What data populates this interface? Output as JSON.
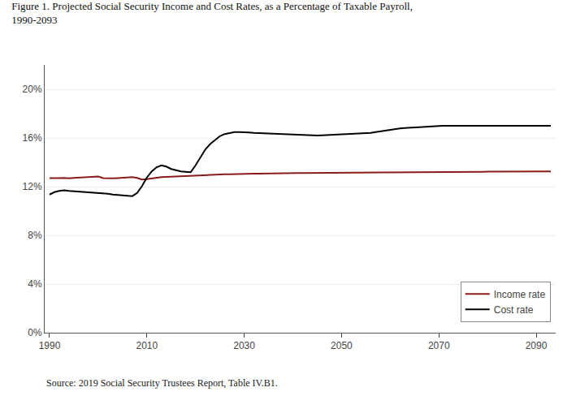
{
  "chart_data": {
    "type": "line",
    "title": "Figure 1. Projected Social Security Income and Cost Rates, as a Percentage of Taxable Payroll, 1990-2093",
    "annotations": [
      "Source: 2019 Social Security Trustees Report, Table IV.B1."
    ],
    "x": [
      1990,
      1991,
      1992,
      1993,
      1994,
      1995,
      1996,
      1997,
      1998,
      1999,
      2000,
      2001,
      2002,
      2003,
      2004,
      2005,
      2006,
      2007,
      2008,
      2009,
      2010,
      2011,
      2012,
      2013,
      2014,
      2015,
      2016,
      2017,
      2018,
      2019,
      2020,
      2021,
      2022,
      2023,
      2024,
      2025,
      2026,
      2027,
      2028,
      2029,
      2030,
      2031,
      2032,
      2033,
      2034,
      2035,
      2036,
      2037,
      2038,
      2039,
      2040,
      2041,
      2042,
      2043,
      2044,
      2045,
      2046,
      2047,
      2048,
      2049,
      2050,
      2051,
      2052,
      2053,
      2054,
      2055,
      2056,
      2057,
      2058,
      2059,
      2060,
      2061,
      2062,
      2063,
      2064,
      2065,
      2066,
      2067,
      2068,
      2069,
      2070,
      2071,
      2072,
      2073,
      2074,
      2075,
      2076,
      2077,
      2078,
      2079,
      2080,
      2081,
      2082,
      2083,
      2084,
      2085,
      2086,
      2087,
      2088,
      2089,
      2090,
      2091,
      2092,
      2093
    ],
    "series": [
      {
        "name": "Income rate",
        "color": "#8B1A1A",
        "values": [
          0.127,
          0.1268,
          0.127,
          0.1272,
          0.1268,
          0.1272,
          0.1275,
          0.1278,
          0.128,
          0.1282,
          0.1283,
          0.127,
          0.1268,
          0.1268,
          0.127,
          0.1272,
          0.1275,
          0.1278,
          0.1272,
          0.1258,
          0.1262,
          0.1268,
          0.1272,
          0.1278,
          0.128,
          0.1282,
          0.1285,
          0.1288,
          0.129,
          0.1292,
          0.1295,
          0.1295,
          0.1298,
          0.1298,
          0.13,
          0.13,
          0.1302,
          0.1302,
          0.1304,
          0.1304,
          0.1306,
          0.1306,
          0.1307,
          0.1307,
          0.1308,
          0.1308,
          0.1309,
          0.1309,
          0.131,
          0.131,
          0.1311,
          0.1311,
          0.1311,
          0.1311,
          0.1312,
          0.1312,
          0.1312,
          0.1313,
          0.1313,
          0.1313,
          0.1314,
          0.1314,
          0.1314,
          0.1315,
          0.1315,
          0.1315,
          0.1316,
          0.1316,
          0.1316,
          0.1317,
          0.1317,
          0.1317,
          0.1318,
          0.1318,
          0.1318,
          0.1319,
          0.1319,
          0.1319,
          0.132,
          0.132,
          0.132,
          0.1321,
          0.1321,
          0.1321,
          0.1321,
          0.1322,
          0.1322,
          0.1322,
          0.1322,
          0.1322,
          0.1323,
          0.1323,
          0.1323,
          0.1323,
          0.1324,
          0.1324,
          0.1324,
          0.1324,
          0.1325,
          0.1325,
          0.1325,
          0.1325,
          0.1325,
          0.1325
        ]
      },
      {
        "name": "Cost rate",
        "color": "#000000",
        "values": [
          0.1135,
          0.1155,
          0.1165,
          0.117,
          0.1165,
          0.1162,
          0.1158,
          0.116,
          0.1156,
          0.1152,
          0.115,
          0.1145,
          0.1142,
          0.1135,
          0.1132,
          0.1128,
          0.1125,
          0.1122,
          0.1148,
          0.1205,
          0.1275,
          0.1325,
          0.136,
          0.1375,
          0.1365,
          0.1345,
          0.1335,
          0.1325,
          0.1322,
          0.1318,
          0.1375,
          0.1445,
          0.1505,
          0.155,
          0.1585,
          0.1615,
          0.1632,
          0.1642,
          0.1648,
          0.1648,
          0.1648,
          0.1645,
          0.1642,
          0.164,
          0.1638,
          0.1636,
          0.1634,
          0.1632,
          0.163,
          0.1628,
          0.1626,
          0.1624,
          0.1622,
          0.162,
          0.162,
          0.162,
          0.1622,
          0.1624,
          0.1626,
          0.1628,
          0.1628,
          0.163,
          0.1632,
          0.1634,
          0.1636,
          0.1638,
          0.1642,
          0.1648,
          0.1655,
          0.1662,
          0.1668,
          0.1674,
          0.1678,
          0.1682,
          0.1685,
          0.1688,
          0.169,
          0.1692,
          0.1694,
          0.1696,
          0.1698,
          0.17,
          0.17,
          0.17,
          0.17,
          0.17,
          0.17,
          0.17,
          0.17,
          0.17,
          0.17,
          0.17,
          0.17,
          0.17,
          0.17,
          0.17,
          0.17,
          0.17,
          0.17,
          0.17,
          0.17,
          0.17,
          0.17,
          0.17
        ]
      }
    ],
    "xlim": [
      1989,
      2094
    ],
    "xticks": [
      1990,
      2010,
      2030,
      2050,
      2070,
      2090
    ],
    "ylim": [
      0.0,
      0.22
    ],
    "yticks": [
      {
        "value": 0.0,
        "label": "0%"
      },
      {
        "value": 0.04,
        "label": "4%"
      },
      {
        "value": 0.08,
        "label": "8%"
      },
      {
        "value": 0.12,
        "label": "12%"
      },
      {
        "value": 0.16,
        "label": "16%"
      },
      {
        "value": 0.2,
        "label": "20%"
      }
    ],
    "grid": true,
    "legend": "lower right"
  }
}
